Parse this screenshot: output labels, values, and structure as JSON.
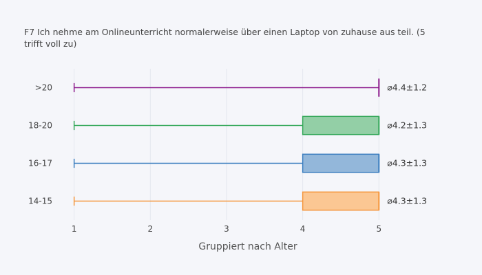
{
  "chart_data": {
    "type": "box",
    "orientation": "horizontal",
    "title": "F7 Ich nehme am Onlineunterricht normalerweise über einen Laptop von zuhause aus teil. (5 tri­fft voll zu)",
    "xlabel": "Gruppiert nach Alter",
    "ylabel": "",
    "xlim": [
      0.75,
      5.63
    ],
    "xticks": [
      1,
      2,
      3,
      4,
      5
    ],
    "grid": true,
    "legend": "none",
    "categories": [
      "14-15",
      "16-17",
      "18-20",
      ">20"
    ],
    "series": [
      {
        "category": "14-15",
        "min": 1,
        "q1": 4,
        "median": 5,
        "q3": 5,
        "max": 5,
        "mean_label": "⌀4.3±1.3",
        "color": "#f5973d",
        "fill": "#fbc793"
      },
      {
        "category": "16-17",
        "min": 1,
        "q1": 4,
        "median": 5,
        "q3": 5,
        "max": 5,
        "mean_label": "⌀4.3±1.3",
        "color": "#3c7ebf",
        "fill": "#93b7da"
      },
      {
        "category": "18-20",
        "min": 1,
        "q1": 4,
        "median": 5,
        "q3": 5,
        "max": 5,
        "mean_label": "⌀4.2±1.3",
        "color": "#35a85a",
        "fill": "#93cfa6"
      },
      {
        "category": ">20",
        "min": 1,
        "q1": 5,
        "median": 5,
        "q3": 5,
        "max": 5,
        "mean_label": "⌀4.4±1.2",
        "color": "#8c1a8c",
        "fill": "#c58dc5"
      }
    ]
  }
}
